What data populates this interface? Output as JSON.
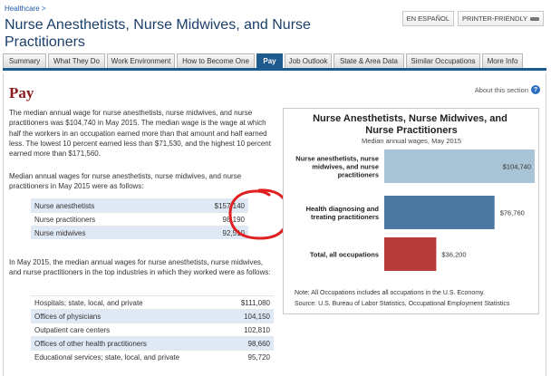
{
  "breadcrumb": "Healthcare >",
  "page_title": "Nurse Anesthetists, Nurse Midwives, and Nurse Practitioners",
  "top_buttons": {
    "espanol": "EN ESPAÑOL",
    "printer": "PRINTER-FRIENDLY"
  },
  "tabs": [
    {
      "label": "Summary",
      "active": false
    },
    {
      "label": "What They Do",
      "active": false
    },
    {
      "label": "Work Environment",
      "active": false
    },
    {
      "label": "How to Become One",
      "active": false
    },
    {
      "label": "Pay",
      "active": true
    },
    {
      "label": "Job Outlook",
      "active": false
    },
    {
      "label": "State & Area Data",
      "active": false
    },
    {
      "label": "Similar Occupations",
      "active": false
    },
    {
      "label": "More Info",
      "active": false
    }
  ],
  "main": {
    "heading": "Pay",
    "about_link": "About this section",
    "para1": "The median annual wage for nurse anesthetists, nurse midwives, and nurse practitioners was $104,740 in May 2015. The median wage is the wage at which half the workers in an occupation earned more than that amount and half earned less. The lowest 10 percent earned less than $71,530, and the highest 10 percent earned more than $171,560.",
    "para2": "Median annual wages for nurse anesthetists, nurse midwives, and nurse practitioners in May 2015 were as follows:",
    "wages": [
      {
        "label": "Nurse anesthetists",
        "value": "$157,140"
      },
      {
        "label": "Nurse practitioners",
        "value": "98,190"
      },
      {
        "label": "Nurse midwives",
        "value": "92,510"
      }
    ],
    "para3": "In May 2015, the median annual wages for nurse anesthetists, nurse midwives, and nurse practitioners in the top industries in which they worked were as follows:",
    "industries": [
      {
        "label": "Hospitals; state, local, and private",
        "value": "$111,080"
      },
      {
        "label": "Offices of physicians",
        "value": "104,150"
      },
      {
        "label": "Outpatient care centers",
        "value": "102,810"
      },
      {
        "label": "Offices of other health practitioners",
        "value": "98,660"
      },
      {
        "label": "Educational services; state, local, and private",
        "value": "95,720"
      }
    ]
  },
  "colors": {
    "accent": "#1d5a8e",
    "heading": "#8b1a1a",
    "annotation": "#e02020"
  },
  "chart_data": {
    "type": "bar",
    "orientation": "horizontal",
    "title": "Nurse Anesthetists, Nurse Midwives, and Nurse Practitioners",
    "subtitle": "Median annual wages, May 2015",
    "categories": [
      "Nurse anesthetists, nurse midwives, and nurse practitioners",
      "Health diagnosing and treating practitioners",
      "Total, all occupations"
    ],
    "values": [
      104740,
      76760,
      36200
    ],
    "value_labels": [
      "$104,740",
      "$76,760",
      "$36,200"
    ],
    "bar_colors": [
      "#a9c4d6",
      "#4b77a0",
      "#b83b3b"
    ],
    "xlim": [
      0,
      104740
    ],
    "grid": false,
    "notes": [
      "Note: All Occupations includes all occupations in the U.S. Economy.",
      "Source: U.S. Bureau of Labor Statistics, Occupational Employment Statistics"
    ]
  }
}
